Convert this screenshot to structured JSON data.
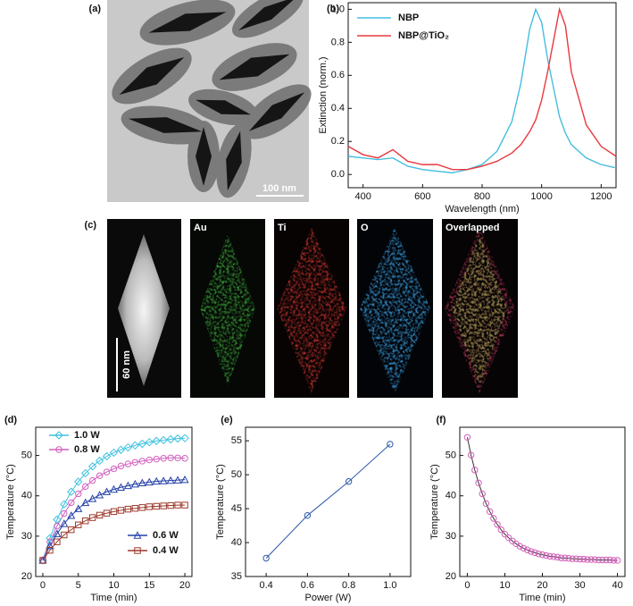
{
  "panels": {
    "a": {
      "label": "(a)",
      "scale_bar": "100 nm"
    },
    "c": {
      "label": "(c)",
      "maps": [
        "Au",
        "Ti",
        "O",
        "Overlapped"
      ],
      "scale_bar": "60 nm"
    }
  },
  "chart_data": [
    {
      "type": "line",
      "panel": "(b)",
      "x_label": "Wavelength (nm)",
      "y_label": "Extinction (norm.)",
      "x": [
        350,
        400,
        450,
        500,
        550,
        600,
        650,
        700,
        750,
        800,
        850,
        900,
        930,
        960,
        980,
        1000,
        1020,
        1060,
        1080,
        1100,
        1150,
        1200,
        1250
      ],
      "series": [
        {
          "name": "NBP",
          "color": "#45bde0",
          "values": [
            0.11,
            0.1,
            0.09,
            0.1,
            0.05,
            0.03,
            0.02,
            0.01,
            0.03,
            0.06,
            0.14,
            0.32,
            0.55,
            0.88,
            1.0,
            0.92,
            0.7,
            0.35,
            0.25,
            0.18,
            0.1,
            0.06,
            0.04
          ]
        },
        {
          "name": "NBP@TiO₂",
          "color": "#e8383d",
          "values": [
            0.17,
            0.12,
            0.1,
            0.15,
            0.08,
            0.06,
            0.06,
            0.03,
            0.03,
            0.05,
            0.08,
            0.13,
            0.18,
            0.26,
            0.33,
            0.45,
            0.62,
            1.0,
            0.9,
            0.62,
            0.3,
            0.17,
            0.11
          ]
        }
      ],
      "xlim": [
        350,
        1250
      ],
      "xticks": [
        400,
        600,
        800,
        1000,
        1200
      ],
      "ylim": [
        -0.08,
        1.04
      ],
      "yticks": [
        {
          "value": 0,
          "label": "0.0"
        },
        0.2,
        0.4,
        0.6,
        0.8,
        {
          "value": 1,
          "label": "1.0"
        }
      ]
    },
    {
      "type": "line",
      "panel": "(d)",
      "x_label": "Time (min)",
      "y_label": "Temperature (°C)",
      "x": [
        0,
        1,
        2,
        3,
        4,
        5,
        6,
        7,
        8,
        9,
        10,
        11,
        12,
        13,
        14,
        15,
        16,
        17,
        18,
        19,
        20
      ],
      "series": [
        {
          "name": "1.0 W",
          "color": "#3ec1e0",
          "marker": "diamond",
          "values": [
            24,
            29.5,
            34.1,
            37.9,
            41.0,
            43.5,
            45.6,
            47.3,
            48.7,
            49.8,
            50.7,
            51.4,
            52.0,
            52.5,
            52.9,
            53.3,
            53.6,
            53.8,
            54.0,
            54.2,
            54.3
          ]
        },
        {
          "name": "0.8 W",
          "color": "#d25fbe",
          "marker": "circle",
          "values": [
            24,
            28.6,
            32.5,
            35.6,
            38.3,
            40.5,
            42.3,
            43.8,
            45.0,
            45.9,
            46.7,
            47.4,
            47.9,
            48.3,
            48.6,
            48.9,
            49.1,
            49.3,
            49.4,
            49.4,
            49.3
          ]
        },
        {
          "name": "0.6 W",
          "color": "#2340a8",
          "marker": "triangle",
          "values": [
            24,
            27.6,
            30.6,
            33.1,
            35.1,
            36.8,
            38.3,
            39.3,
            40.2,
            41.0,
            41.6,
            42.1,
            42.5,
            42.9,
            43.2,
            43.4,
            43.6,
            43.7,
            43.8,
            43.9,
            44.0
          ]
        },
        {
          "name": "0.4 W",
          "color": "#9b3a2b",
          "marker": "square",
          "values": [
            24,
            26.5,
            28.6,
            30.3,
            31.6,
            32.8,
            33.8,
            34.6,
            35.2,
            35.7,
            36.1,
            36.4,
            36.7,
            36.9,
            37.1,
            37.3,
            37.4,
            37.5,
            37.6,
            37.7,
            37.7
          ]
        }
      ],
      "xlim": [
        -1,
        21
      ],
      "xticks": [
        0,
        5,
        10,
        15,
        20
      ],
      "ylim": [
        20,
        57
      ],
      "yticks": [
        20,
        30,
        40,
        50
      ]
    },
    {
      "type": "line",
      "panel": "(e)",
      "x_label": "Power (W)",
      "y_label": "Temperature (°C)",
      "x": [
        0.4,
        0.6,
        0.8,
        1.0
      ],
      "series": [
        {
          "color": "#2e5aa8",
          "marker": "circle",
          "values": [
            37.7,
            44,
            49,
            54.5
          ]
        }
      ],
      "xlim": [
        0.3,
        1.1
      ],
      "xticks": [
        0.4,
        0.6,
        0.8,
        {
          "value": 1,
          "label": "1.0"
        }
      ],
      "ylim": [
        35,
        57
      ],
      "yticks": [
        35,
        40,
        45,
        50,
        55
      ]
    },
    {
      "type": "line",
      "panel": "(f)",
      "x_label": "Time (min)",
      "y_label": "Temperature (°C)",
      "x": [
        0,
        1,
        2,
        3,
        4,
        5,
        6,
        7,
        8,
        9,
        10,
        11,
        12,
        13,
        14,
        15,
        16,
        17,
        18,
        19,
        20,
        21,
        22,
        23,
        24,
        25,
        26,
        27,
        28,
        29,
        30,
        31,
        32,
        33,
        34,
        35,
        36,
        37,
        38,
        39,
        40
      ],
      "series": [
        {
          "color": "#d35fb9",
          "line_color": "#333333",
          "marker": "circle",
          "values": [
            54.5,
            50.1,
            46.4,
            43.2,
            40.5,
            38.1,
            36.1,
            34.4,
            32.9,
            31.6,
            30.5,
            29.6,
            28.8,
            28.1,
            27.5,
            27.0,
            26.6,
            26.2,
            25.9,
            25.6,
            25.4,
            25.2,
            25.0,
            24.9,
            24.8,
            24.6,
            24.6,
            24.5,
            24.4,
            24.4,
            24.3,
            24.3,
            24.2,
            24.2,
            24.2,
            24.1,
            24.1,
            24.1,
            24.1,
            24.0,
            24.0
          ]
        }
      ],
      "xlim": [
        -2,
        42
      ],
      "xticks": [
        0,
        10,
        20,
        30,
        40
      ],
      "ylim": [
        20,
        57
      ],
      "yticks": [
        20,
        30,
        40,
        50
      ]
    }
  ]
}
